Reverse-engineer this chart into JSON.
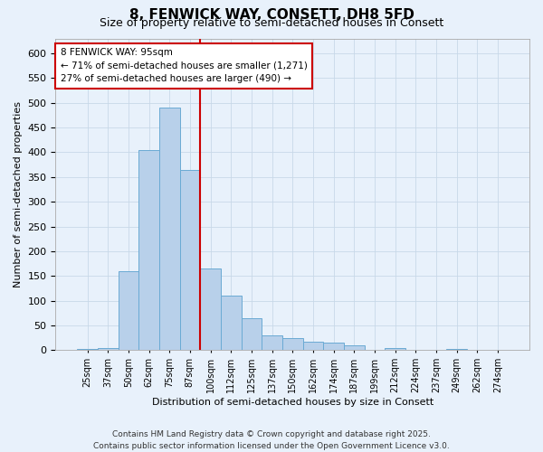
{
  "title1": "8, FENWICK WAY, CONSETT, DH8 5FD",
  "title2": "Size of property relative to semi-detached houses in Consett",
  "xlabel": "Distribution of semi-detached houses by size in Consett",
  "ylabel": "Number of semi-detached properties",
  "bins": [
    "25sqm",
    "37sqm",
    "50sqm",
    "62sqm",
    "75sqm",
    "87sqm",
    "100sqm",
    "112sqm",
    "125sqm",
    "137sqm",
    "150sqm",
    "162sqm",
    "174sqm",
    "187sqm",
    "199sqm",
    "212sqm",
    "224sqm",
    "237sqm",
    "249sqm",
    "262sqm",
    "274sqm"
  ],
  "values": [
    3,
    5,
    160,
    405,
    490,
    365,
    165,
    110,
    65,
    30,
    25,
    18,
    15,
    10,
    0,
    5,
    0,
    0,
    3,
    0,
    0
  ],
  "bar_color": "#b8d0ea",
  "bar_edge_color": "#6aaad4",
  "vline_color": "#cc0000",
  "annotation_line1": "8 FENWICK WAY: 95sqm",
  "annotation_line2": "← 71% of semi-detached houses are smaller (1,271)",
  "annotation_line3": "27% of semi-detached houses are larger (490) →",
  "annotation_box_color": "#cc0000",
  "annotation_bg": "white",
  "ylim": [
    0,
    630
  ],
  "yticks": [
    0,
    50,
    100,
    150,
    200,
    250,
    300,
    350,
    400,
    450,
    500,
    550,
    600
  ],
  "grid_color": "#c8d8e8",
  "background_color": "#e8f1fb",
  "footer": "Contains HM Land Registry data © Crown copyright and database right 2025.\nContains public sector information licensed under the Open Government Licence v3.0.",
  "title1_fontsize": 11,
  "title2_fontsize": 9,
  "annot_fontsize": 7.5,
  "footer_fontsize": 6.5,
  "xlabel_fontsize": 8,
  "ylabel_fontsize": 8
}
